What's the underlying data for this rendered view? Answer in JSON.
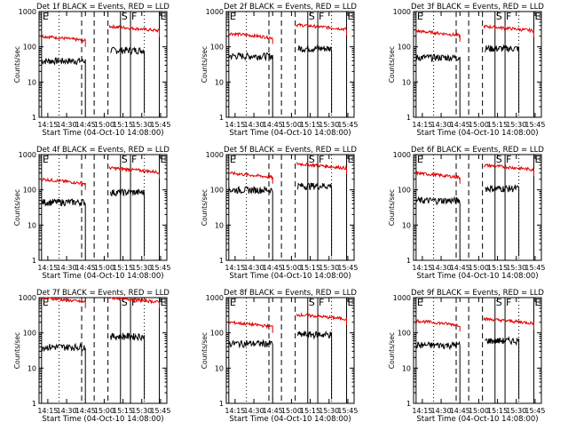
{
  "colors": {
    "events": "#000000",
    "lld": "#e00000",
    "axis": "#000000",
    "marker": "#000000"
  },
  "chart_data": [
    {
      "type": "line",
      "title": "Det 1f BLACK = Events, RED = LLD",
      "xlabel": "Start Time (04-Oct-10 14:08:00)",
      "ylabel": "Counts/sec",
      "yscale": "log",
      "ylim": [
        1,
        1000
      ],
      "x_ticks": [
        "14:15",
        "14:30",
        "14:45",
        "15:00",
        "15:15",
        "15:30",
        "15:45"
      ],
      "y_ticks": [
        "1",
        "10",
        "100",
        "1000"
      ],
      "markers": [
        "E",
        "S",
        "F",
        "E"
      ],
      "series": [
        {
          "name": "BLACK = Events",
          "segments": [
            {
              "from": "14:10",
              "to": "14:45",
              "level": 40
            },
            {
              "from": "15:05",
              "to": "15:32",
              "level": 80
            }
          ]
        },
        {
          "name": "RED = LLD",
          "segments": [
            {
              "from": "14:10",
              "to": "14:45",
              "level": 200
            },
            {
              "from": "15:04",
              "to": "15:44",
              "level": 380
            }
          ]
        }
      ]
    },
    {
      "type": "line",
      "title": "Det 2f BLACK = Events, RED = LLD",
      "xlabel": "Start Time (04-Oct-10 14:08:00)",
      "ylabel": "Counts/sec",
      "yscale": "log",
      "ylim": [
        1,
        1000
      ],
      "x_ticks": [
        "14:15",
        "14:30",
        "14:45",
        "15:00",
        "15:15",
        "15:30",
        "15:45"
      ],
      "y_ticks": [
        "1",
        "10",
        "100",
        "1000"
      ],
      "markers": [
        "E",
        "S",
        "F",
        "E"
      ],
      "series": [
        {
          "name": "BLACK = Events",
          "segments": [
            {
              "from": "14:10",
              "to": "14:45",
              "level": 55
            },
            {
              "from": "15:05",
              "to": "15:32",
              "level": 90
            }
          ]
        },
        {
          "name": "RED = LLD",
          "segments": [
            {
              "from": "14:10",
              "to": "14:45",
              "level": 240
            },
            {
              "from": "15:04",
              "to": "15:44",
              "level": 420
            }
          ]
        }
      ]
    },
    {
      "type": "line",
      "title": "Det 3f BLACK = Events, RED = LLD",
      "xlabel": "Start Time (04-Oct-10 14:08:00)",
      "ylabel": "Counts/sec",
      "yscale": "log",
      "ylim": [
        1,
        1000
      ],
      "x_ticks": [
        "14:15",
        "14:30",
        "14:45",
        "15:00",
        "15:15",
        "15:30",
        "15:45"
      ],
      "y_ticks": [
        "1",
        "10",
        "100",
        "1000"
      ],
      "markers": [
        "E",
        "S",
        "F",
        "E"
      ],
      "series": [
        {
          "name": "BLACK = Events",
          "segments": [
            {
              "from": "14:10",
              "to": "14:45",
              "level": 50
            },
            {
              "from": "15:05",
              "to": "15:32",
              "level": 90
            }
          ]
        },
        {
          "name": "RED = LLD",
          "segments": [
            {
              "from": "14:10",
              "to": "14:45",
              "level": 280
            },
            {
              "from": "15:04",
              "to": "15:44",
              "level": 380
            }
          ]
        }
      ]
    },
    {
      "type": "line",
      "title": "Det 4f BLACK = Events, RED = LLD",
      "xlabel": "Start Time (04-Oct-10 14:08:00)",
      "ylabel": "Counts/sec",
      "yscale": "log",
      "ylim": [
        1,
        1000
      ],
      "x_ticks": [
        "14:15",
        "14:30",
        "14:45",
        "15:00",
        "15:15",
        "15:30",
        "15:45"
      ],
      "y_ticks": [
        "1",
        "10",
        "100",
        "1000"
      ],
      "markers": [
        "E",
        "S",
        "F",
        "E"
      ],
      "series": [
        {
          "name": "BLACK = Events",
          "segments": [
            {
              "from": "14:10",
              "to": "14:45",
              "level": 45
            },
            {
              "from": "15:05",
              "to": "15:32",
              "level": 85
            }
          ]
        },
        {
          "name": "RED = LLD",
          "segments": [
            {
              "from": "14:10",
              "to": "14:45",
              "level": 200
            },
            {
              "from": "15:04",
              "to": "15:44",
              "level": 420
            }
          ]
        }
      ]
    },
    {
      "type": "line",
      "title": "Det 5f BLACK = Events, RED = LLD",
      "xlabel": "Start Time (04-Oct-10 14:08:00)",
      "ylabel": "Counts/sec",
      "yscale": "log",
      "ylim": [
        1,
        1000
      ],
      "x_ticks": [
        "14:15",
        "14:30",
        "14:45",
        "15:00",
        "15:15",
        "15:30",
        "15:45"
      ],
      "y_ticks": [
        "1",
        "10",
        "100",
        "1000"
      ],
      "markers": [
        "E",
        "S",
        "F",
        "E"
      ],
      "series": [
        {
          "name": "BLACK = Events",
          "segments": [
            {
              "from": "14:10",
              "to": "14:45",
              "level": 100
            },
            {
              "from": "15:05",
              "to": "15:32",
              "level": 130
            }
          ]
        },
        {
          "name": "RED = LLD",
          "segments": [
            {
              "from": "14:10",
              "to": "14:45",
              "level": 300
            },
            {
              "from": "15:04",
              "to": "15:44",
              "level": 550
            }
          ]
        }
      ]
    },
    {
      "type": "line",
      "title": "Det 6f BLACK = Events, RED = LLD",
      "xlabel": "Start Time (04-Oct-10 14:08:00)",
      "ylabel": "Counts/sec",
      "yscale": "log",
      "ylim": [
        1,
        1000
      ],
      "x_ticks": [
        "14:15",
        "14:30",
        "14:45",
        "15:00",
        "15:15",
        "15:30",
        "15:45"
      ],
      "y_ticks": [
        "1",
        "10",
        "100",
        "1000"
      ],
      "markers": [
        "E",
        "S",
        "F",
        "E"
      ],
      "series": [
        {
          "name": "BLACK = Events",
          "segments": [
            {
              "from": "14:10",
              "to": "14:45",
              "level": 50
            },
            {
              "from": "15:05",
              "to": "15:32",
              "level": 110
            }
          ]
        },
        {
          "name": "RED = LLD",
          "segments": [
            {
              "from": "14:10",
              "to": "14:45",
              "level": 300
            },
            {
              "from": "15:04",
              "to": "15:44",
              "level": 500
            }
          ]
        }
      ]
    },
    {
      "type": "line",
      "title": "Det 7f BLACK = Events, RED = LLD",
      "xlabel": "Start Time (04-Oct-10 14:08:00)",
      "ylabel": "Counts/sec",
      "yscale": "log",
      "ylim": [
        1,
        1000
      ],
      "x_ticks": [
        "14:15",
        "14:30",
        "14:45",
        "15:00",
        "15:15",
        "15:30",
        "15:45"
      ],
      "y_ticks": [
        "1",
        "10",
        "100",
        "1000"
      ],
      "markers": [
        "E",
        "S",
        "F",
        "E"
      ],
      "series": [
        {
          "name": "BLACK = Events",
          "segments": [
            {
              "from": "14:10",
              "to": "14:45",
              "level": 40
            },
            {
              "from": "15:05",
              "to": "15:32",
              "level": 80
            }
          ]
        },
        {
          "name": "RED = LLD",
          "segments": [
            {
              "from": "14:10",
              "to": "14:45",
              "level": 1000
            },
            {
              "from": "15:04",
              "to": "15:44",
              "level": 1000
            }
          ]
        }
      ]
    },
    {
      "type": "line",
      "title": "Det 8f BLACK = Events, RED = LLD",
      "xlabel": "Start Time (04-Oct-10 14:08:00)",
      "ylabel": "Counts/sec",
      "yscale": "log",
      "ylim": [
        1,
        1000
      ],
      "x_ticks": [
        "14:15",
        "14:30",
        "14:45",
        "15:00",
        "15:15",
        "15:30",
        "15:45"
      ],
      "y_ticks": [
        "1",
        "10",
        "100",
        "1000"
      ],
      "markers": [
        "E",
        "S",
        "F",
        "E"
      ],
      "series": [
        {
          "name": "BLACK = Events",
          "segments": [
            {
              "from": "14:10",
              "to": "14:45",
              "level": 50
            },
            {
              "from": "15:05",
              "to": "15:32",
              "level": 90
            }
          ]
        },
        {
          "name": "RED = LLD",
          "segments": [
            {
              "from": "14:10",
              "to": "14:45",
              "level": 200
            },
            {
              "from": "15:04",
              "to": "15:44",
              "level": 330
            }
          ]
        }
      ]
    },
    {
      "type": "line",
      "title": "Det 9f BLACK = Events, RED = LLD",
      "xlabel": "Start Time (04-Oct-10 14:08:00)",
      "ylabel": "Counts/sec",
      "yscale": "log",
      "ylim": [
        1,
        1000
      ],
      "x_ticks": [
        "14:15",
        "14:30",
        "14:45",
        "15:00",
        "15:15",
        "15:30",
        "15:45"
      ],
      "y_ticks": [
        "1",
        "10",
        "100",
        "1000"
      ],
      "markers": [
        "E",
        "S",
        "F",
        "E"
      ],
      "series": [
        {
          "name": "BLACK = Events",
          "segments": [
            {
              "from": "14:10",
              "to": "14:45",
              "level": 45
            },
            {
              "from": "15:05",
              "to": "15:32",
              "level": 60
            }
          ]
        },
        {
          "name": "RED = LLD",
          "segments": [
            {
              "from": "14:10",
              "to": "14:45",
              "level": 220
            },
            {
              "from": "15:04",
              "to": "15:44",
              "level": 250
            }
          ]
        }
      ]
    }
  ]
}
